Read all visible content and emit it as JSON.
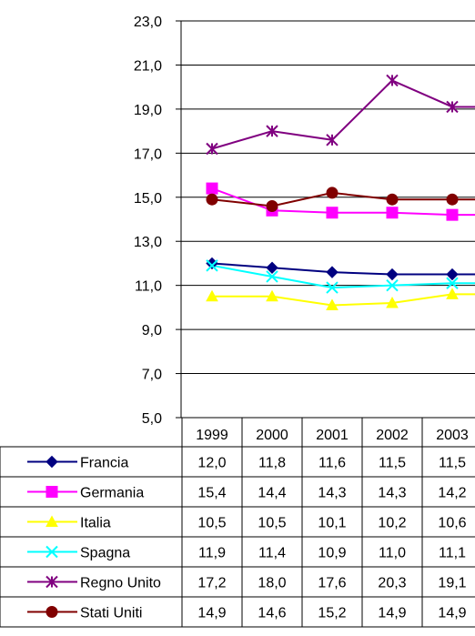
{
  "chart_data": {
    "type": "line",
    "categories": [
      "1999",
      "2000",
      "2001",
      "2002",
      "2003"
    ],
    "ylim": [
      5.0,
      23.0
    ],
    "yticks": [
      "5,0",
      "7,0",
      "9,0",
      "11,0",
      "13,0",
      "15,0",
      "17,0",
      "19,0",
      "21,0",
      "23,0"
    ],
    "grid": true,
    "legend": "data-table-below",
    "series": [
      {
        "name": "Francia",
        "color": "#000080",
        "marker": "diamond",
        "values": [
          12.0,
          11.8,
          11.6,
          11.5,
          11.5
        ],
        "labels": [
          "12,0",
          "11,8",
          "11,6",
          "11,5",
          "11,5"
        ]
      },
      {
        "name": "Germania",
        "color": "#ff00ff",
        "marker": "square",
        "values": [
          15.4,
          14.4,
          14.3,
          14.3,
          14.2
        ],
        "labels": [
          "15,4",
          "14,4",
          "14,3",
          "14,3",
          "14,2"
        ]
      },
      {
        "name": "Italia",
        "color": "#ffff00",
        "marker": "triangle",
        "values": [
          10.5,
          10.5,
          10.1,
          10.2,
          10.6
        ],
        "labels": [
          "10,5",
          "10,5",
          "10,1",
          "10,2",
          "10,6"
        ]
      },
      {
        "name": "Spagna",
        "color": "#00ffff",
        "marker": "x",
        "values": [
          11.9,
          11.4,
          10.9,
          11.0,
          11.1
        ],
        "labels": [
          "11,9",
          "11,4",
          "10,9",
          "11,0",
          "11,1"
        ]
      },
      {
        "name": "Regno Unito",
        "color": "#800080",
        "marker": "star",
        "values": [
          17.2,
          18.0,
          17.6,
          20.3,
          19.1
        ],
        "labels": [
          "17,2",
          "18,0",
          "17,6",
          "20,3",
          "19,1"
        ]
      },
      {
        "name": "Stati Uniti",
        "color": "#800000",
        "marker": "circle",
        "values": [
          14.9,
          14.6,
          15.2,
          14.9,
          14.9
        ],
        "labels": [
          "14,9",
          "14,6",
          "15,2",
          "14,9",
          "14,9"
        ]
      }
    ]
  }
}
